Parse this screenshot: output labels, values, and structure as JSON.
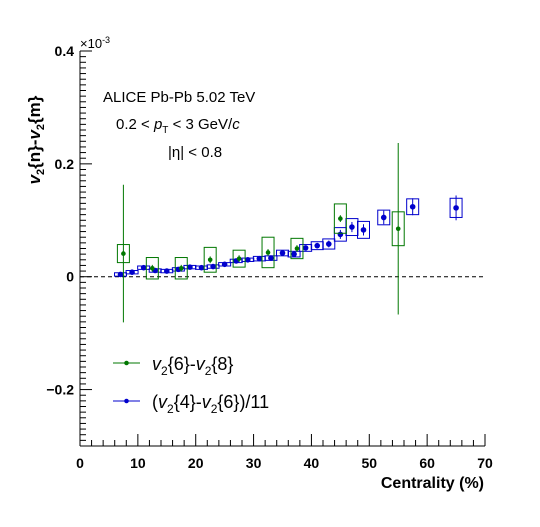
{
  "chart_data": {
    "type": "scatter",
    "xlabel": "Centrality (%)",
    "ylabel_parts": [
      "v",
      "2",
      "{n}-",
      "v",
      "2",
      "{m}"
    ],
    "xlim": [
      0,
      70
    ],
    "ylim": [
      -0.3,
      0.4
    ],
    "y_exponent": "×10",
    "y_exponent_power": "-3",
    "x_ticks": [
      "0",
      "10",
      "20",
      "30",
      "40",
      "50",
      "60",
      "70"
    ],
    "y_ticks": [
      "−0.2",
      "0",
      "0.2",
      "0.4"
    ],
    "y_tick_values": [
      -0.2,
      0,
      0.2,
      0.4
    ],
    "x_tick_values": [
      0,
      10,
      20,
      30,
      40,
      50,
      60,
      70
    ],
    "grid": false,
    "reference_line_y": 0,
    "annotations": {
      "experiment": "ALICE Pb-Pb 5.02 TeV",
      "pt_prefix": "0.2 < ",
      "pt_symbol": "p",
      "pt_sub": "T",
      "pt_suffix": " < 3 GeV/",
      "pt_c": "c",
      "eta": "|η| < 0.8"
    },
    "legend_position": "bottom-left",
    "series": [
      {
        "name": "v2{6}-v2{8}",
        "legend_parts": [
          "v",
          "2",
          "{6}-",
          "v",
          "2",
          "{8}"
        ],
        "color": "#007700",
        "points": [
          {
            "x": 7.5,
            "y": 0.041,
            "stat": 0.122,
            "sys": 0.016
          },
          {
            "x": 12.5,
            "y": 0.015,
            "stat": 0.006,
            "sys": 0.019
          },
          {
            "x": 17.5,
            "y": 0.015,
            "stat": 0.006,
            "sys": 0.019
          },
          {
            "x": 22.5,
            "y": 0.03,
            "stat": 0.006,
            "sys": 0.022
          },
          {
            "x": 27.5,
            "y": 0.032,
            "stat": 0.006,
            "sys": 0.015
          },
          {
            "x": 32.5,
            "y": 0.043,
            "stat": 0.006,
            "sys": 0.027
          },
          {
            "x": 37.5,
            "y": 0.05,
            "stat": 0.006,
            "sys": 0.018
          },
          {
            "x": 45,
            "y": 0.103,
            "stat": 0.006,
            "sys": 0.026
          },
          {
            "x": 55,
            "y": 0.085,
            "stat": 0.152,
            "sys": 0.03
          }
        ]
      },
      {
        "name": "(v2{4}-v2{6})/11",
        "legend_parts": [
          "(",
          "v",
          "2",
          "{4}-",
          "v",
          "2",
          "{6})/11"
        ],
        "color": "#0000cc",
        "points": [
          {
            "x": 7,
            "y": 0.004,
            "stat": 0.004,
            "sys": 0.003
          },
          {
            "x": 9,
            "y": 0.008,
            "stat": 0.003,
            "sys": 0.003
          },
          {
            "x": 11,
            "y": 0.016,
            "stat": 0.003,
            "sys": 0.003
          },
          {
            "x": 13,
            "y": 0.011,
            "stat": 0.003,
            "sys": 0.003
          },
          {
            "x": 15,
            "y": 0.01,
            "stat": 0.003,
            "sys": 0.003
          },
          {
            "x": 17,
            "y": 0.013,
            "stat": 0.003,
            "sys": 0.003
          },
          {
            "x": 19,
            "y": 0.017,
            "stat": 0.003,
            "sys": 0.003
          },
          {
            "x": 21,
            "y": 0.016,
            "stat": 0.003,
            "sys": 0.003
          },
          {
            "x": 23,
            "y": 0.018,
            "stat": 0.003,
            "sys": 0.003
          },
          {
            "x": 25,
            "y": 0.022,
            "stat": 0.003,
            "sys": 0.003
          },
          {
            "x": 27,
            "y": 0.028,
            "stat": 0.003,
            "sys": 0.003
          },
          {
            "x": 29,
            "y": 0.03,
            "stat": 0.003,
            "sys": 0.003
          },
          {
            "x": 31,
            "y": 0.032,
            "stat": 0.003,
            "sys": 0.004
          },
          {
            "x": 33,
            "y": 0.033,
            "stat": 0.004,
            "sys": 0.004
          },
          {
            "x": 35,
            "y": 0.042,
            "stat": 0.004,
            "sys": 0.005
          },
          {
            "x": 37,
            "y": 0.04,
            "stat": 0.004,
            "sys": 0.005
          },
          {
            "x": 39,
            "y": 0.051,
            "stat": 0.004,
            "sys": 0.006
          },
          {
            "x": 41,
            "y": 0.055,
            "stat": 0.005,
            "sys": 0.007
          },
          {
            "x": 43,
            "y": 0.058,
            "stat": 0.006,
            "sys": 0.009
          },
          {
            "x": 45,
            "y": 0.075,
            "stat": 0.008,
            "sys": 0.012
          },
          {
            "x": 47,
            "y": 0.088,
            "stat": 0.009,
            "sys": 0.015
          },
          {
            "x": 49,
            "y": 0.083,
            "stat": 0.01,
            "sys": 0.015
          },
          {
            "x": 52.5,
            "y": 0.105,
            "stat": 0.012,
            "sys": 0.013
          },
          {
            "x": 57.5,
            "y": 0.124,
            "stat": 0.015,
            "sys": 0.014
          },
          {
            "x": 65,
            "y": 0.122,
            "stat": 0.022,
            "sys": 0.017
          }
        ]
      }
    ]
  }
}
